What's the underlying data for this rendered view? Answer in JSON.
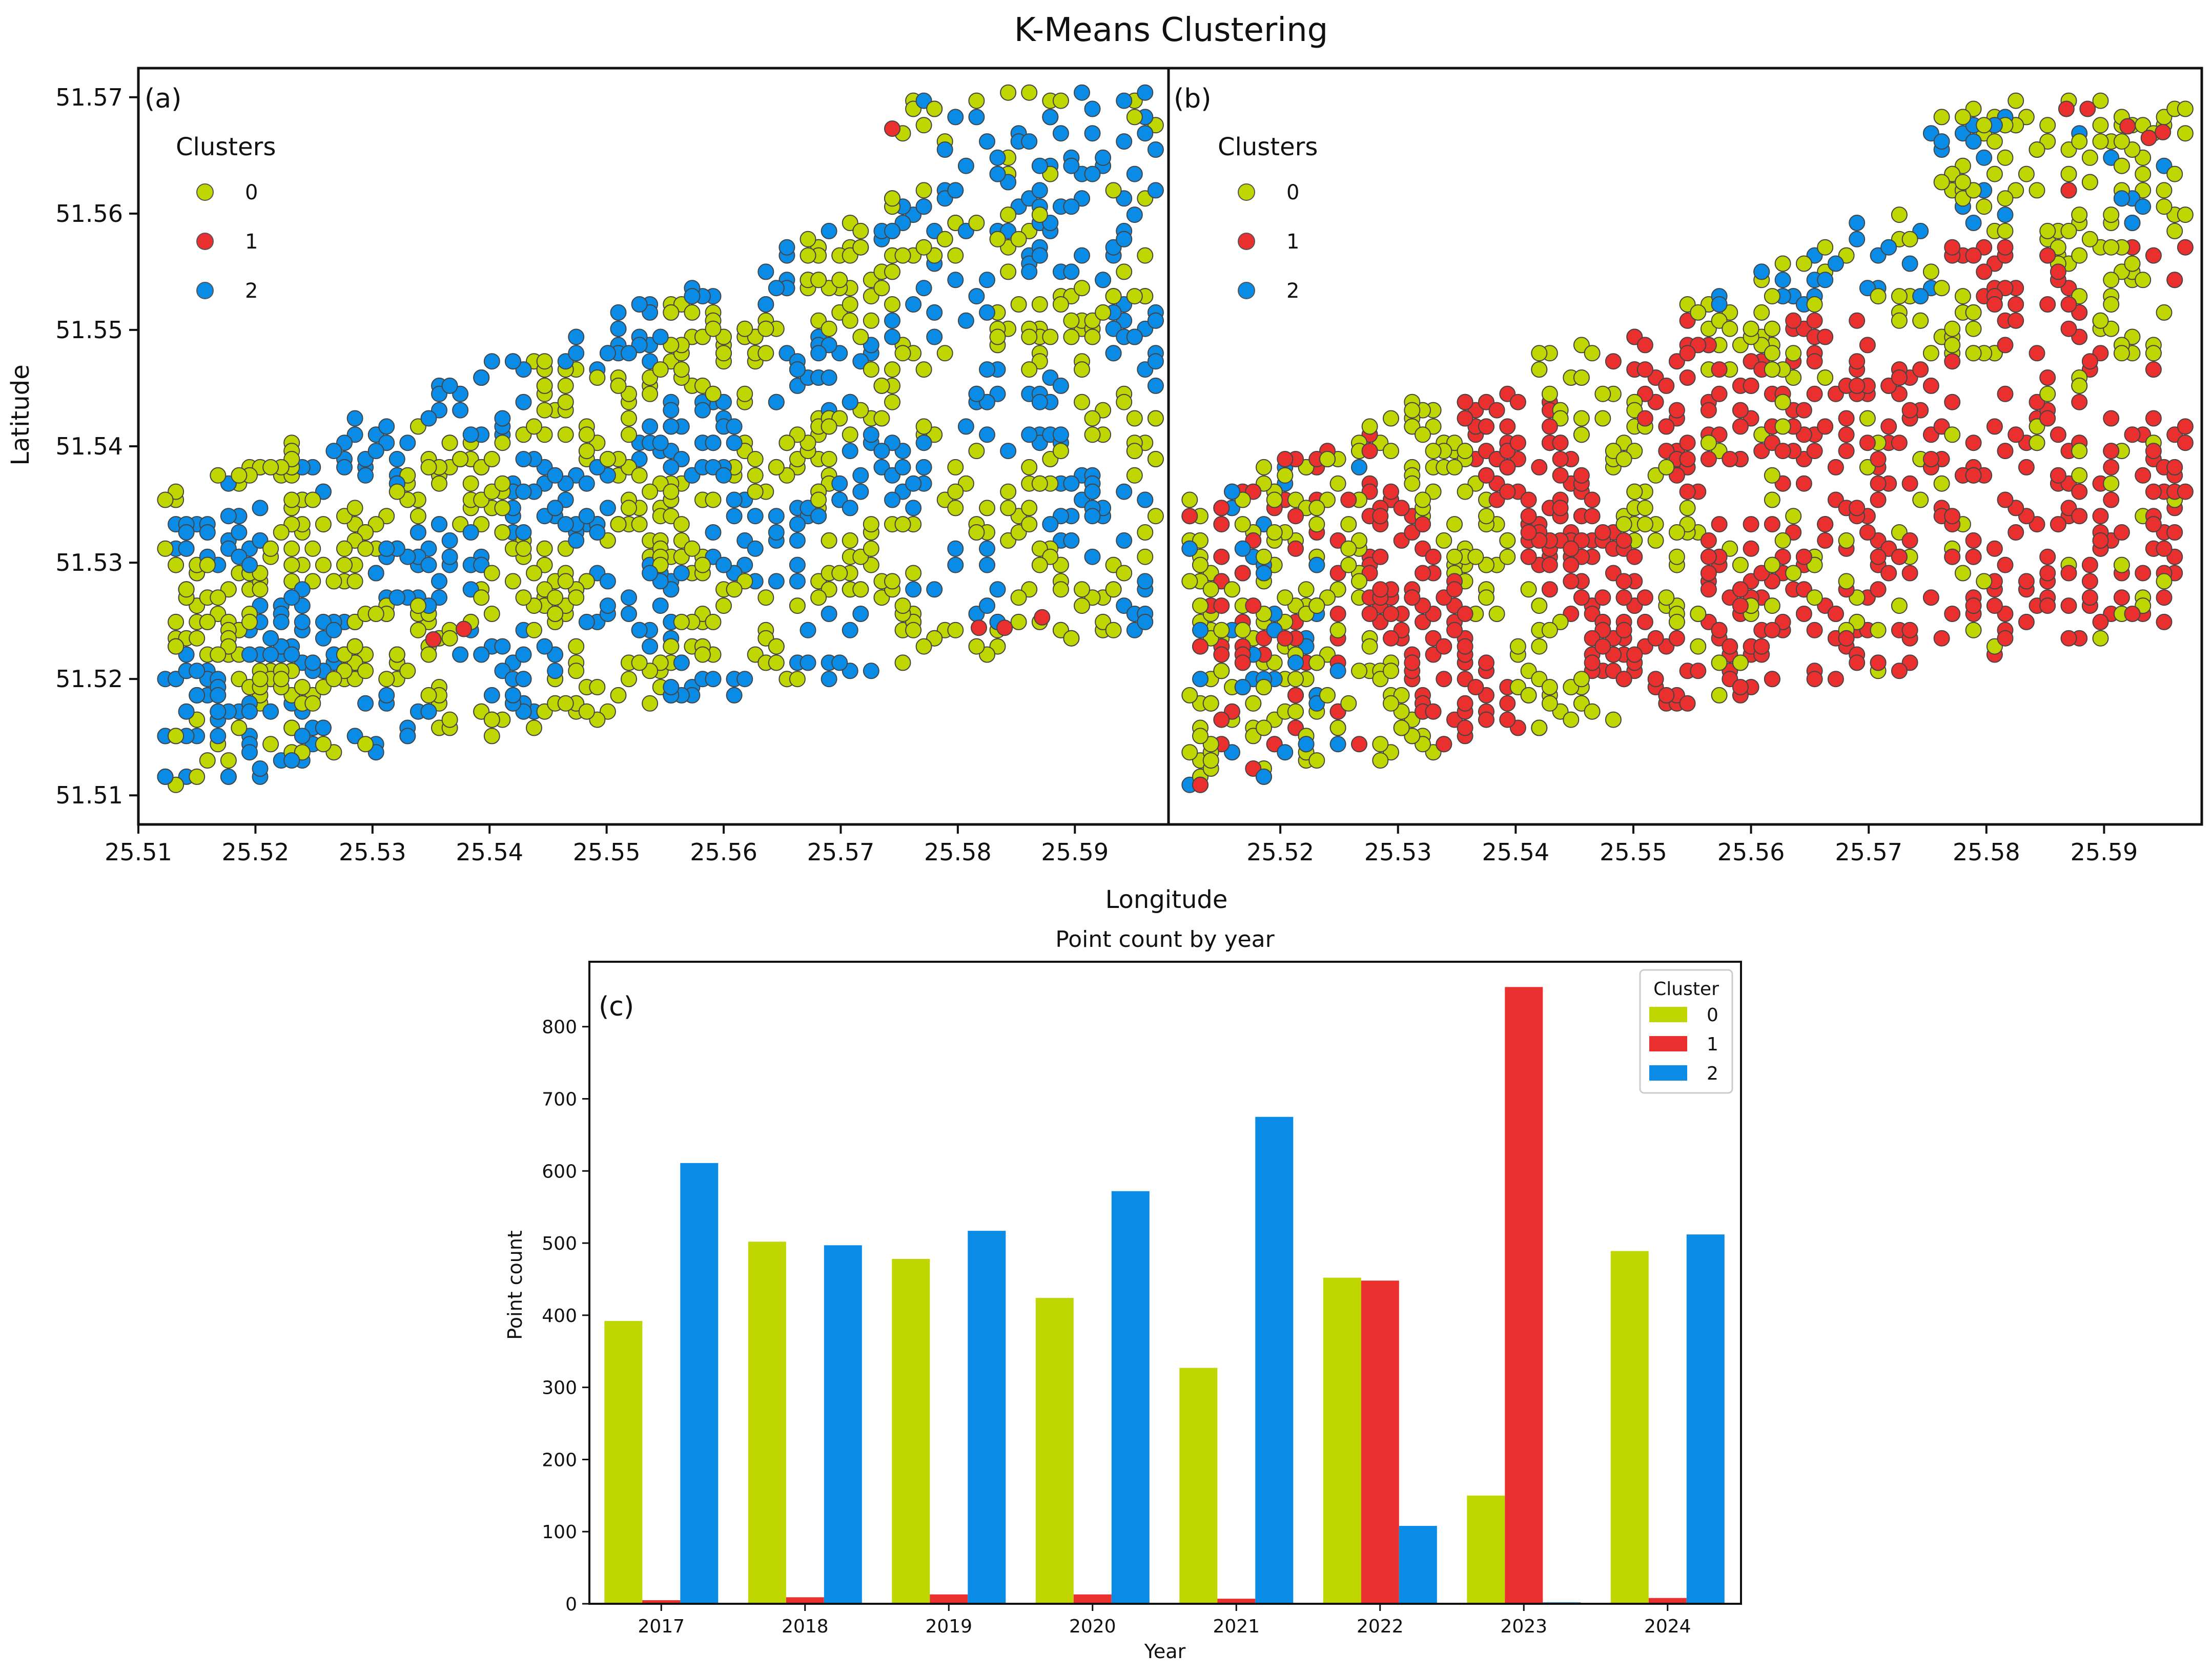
{
  "figure_title": "K-Means Clustering",
  "colors": {
    "0": "#bfd600",
    "1": "#ea2f2f",
    "2": "#0a8ce6"
  },
  "chart_data": [
    {
      "type": "scatter",
      "panel_label": "(a)",
      "legend_title": "Clusters",
      "legend_entries": [
        "0",
        "1",
        "2"
      ],
      "xlim": [
        25.51,
        25.598
      ],
      "ylim": [
        51.5075,
        51.5725
      ],
      "xticks": [
        25.51,
        25.52,
        25.53,
        25.54,
        25.55,
        25.56,
        25.57,
        25.58,
        25.59
      ],
      "yticks": [
        51.51,
        51.52,
        51.53,
        51.54,
        51.55,
        51.56,
        51.57
      ],
      "xlabel": "Longitude",
      "ylabel": "Latitude",
      "seed": 11,
      "region": {
        "lon": [
          25.512,
          25.597
        ],
        "lat_top": [
          51.5355,
          51.5705
        ],
        "lat_bottom": [
          51.5105,
          51.5245
        ]
      },
      "red_points": [
        [
          25.5744,
          51.5673
        ],
        [
          25.5352,
          51.5234
        ],
        [
          25.5378,
          51.5243
        ],
        [
          25.5818,
          51.5244
        ],
        [
          25.584,
          51.5244
        ],
        [
          25.5872,
          51.5253
        ]
      ]
    },
    {
      "type": "scatter",
      "panel_label": "(b)",
      "legend_title": "Clusters",
      "legend_entries": [
        "0",
        "1",
        "2"
      ],
      "xlim": [
        25.5105,
        25.5983
      ],
      "ylim": [
        51.5075,
        51.5725
      ],
      "xticks": [
        25.51,
        25.52,
        25.53,
        25.54,
        25.55,
        25.56,
        25.57,
        25.58,
        25.59
      ],
      "yticks": [],
      "seed": 29,
      "region": {
        "lon": [
          25.512,
          25.597
        ],
        "lat_top": [
          51.5355,
          51.5705
        ],
        "lat_bottom": [
          51.5105,
          51.5245
        ]
      },
      "red_points": [
        [
          25.5868,
          51.569
        ],
        [
          25.5886,
          51.569
        ],
        [
          25.5938,
          51.5665
        ],
        [
          25.595,
          51.567
        ],
        [
          25.592,
          51.5675
        ],
        [
          25.587,
          51.562
        ]
      ]
    },
    {
      "type": "bar",
      "panel_label": "(c)",
      "title": "Point count by year",
      "xlabel": "Year",
      "ylabel": "Point count",
      "categories": [
        "2017",
        "2018",
        "2019",
        "2020",
        "2021",
        "2022",
        "2023",
        "2024"
      ],
      "ylim": [
        0,
        890
      ],
      "yticks": [
        0,
        100,
        200,
        300,
        400,
        500,
        600,
        700,
        800
      ],
      "legend_title": "Cluster",
      "series": [
        {
          "name": "0",
          "values": [
            392,
            502,
            478,
            424,
            327,
            452,
            150,
            489
          ]
        },
        {
          "name": "1",
          "values": [
            5,
            9,
            13,
            13,
            7,
            448,
            855,
            8
          ]
        },
        {
          "name": "2",
          "values": [
            611,
            497,
            517,
            572,
            675,
            108,
            2,
            512
          ]
        }
      ]
    }
  ]
}
